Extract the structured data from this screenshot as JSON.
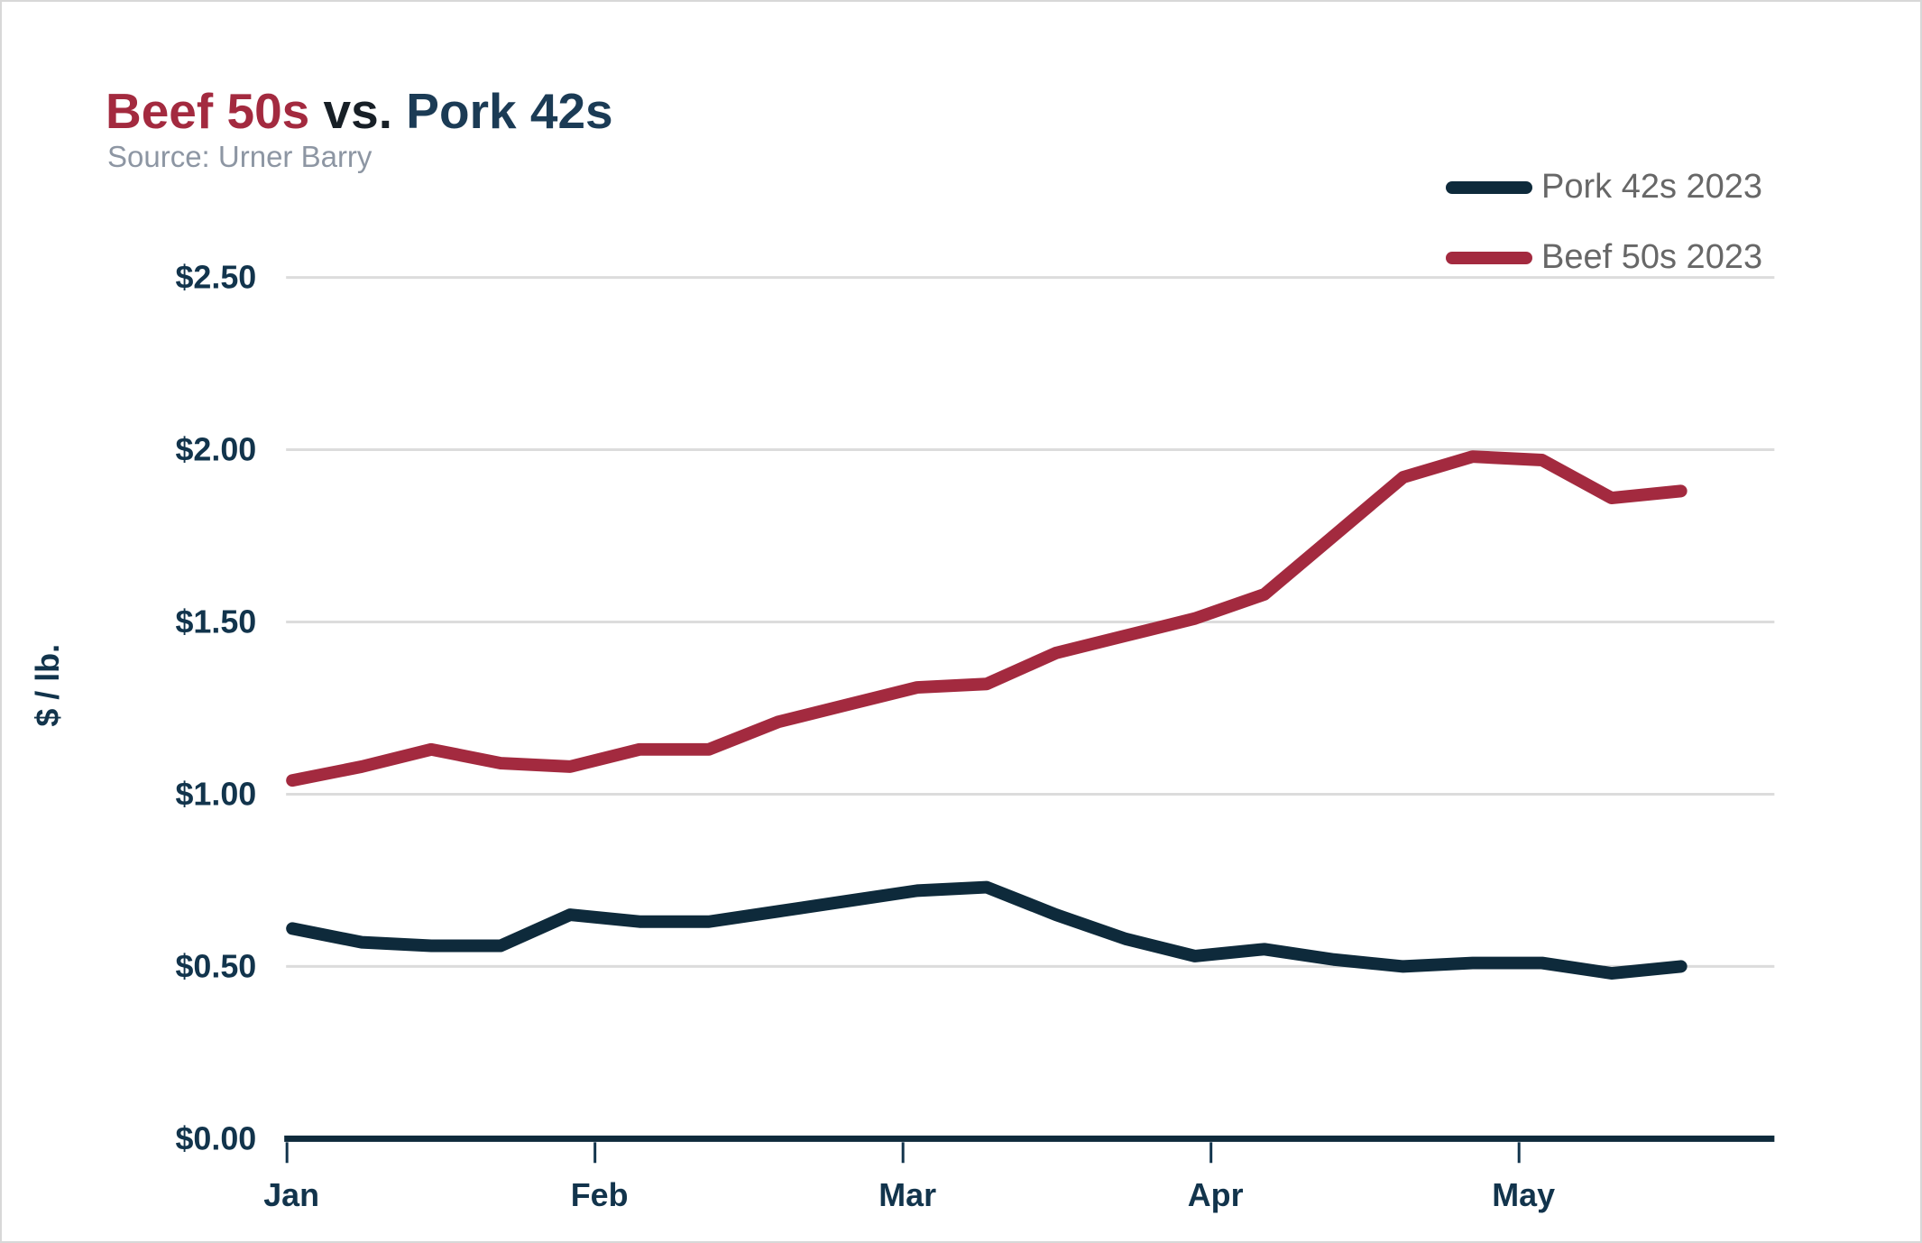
{
  "title": {
    "beef": "Beef 50s",
    "vs": " vs. ",
    "pork": "Pork 42s"
  },
  "subtitle": "Source: Urner Barry",
  "legend": [
    {
      "label": "Pork 42s 2023",
      "color": "#0e2a3b"
    },
    {
      "label": "Beef 50s 2023",
      "color": "#a32a3f"
    }
  ],
  "colors": {
    "beef": "#a32a3f",
    "pork": "#0e2a3b",
    "grid": "#dcdcdc",
    "axis_text": "#12344c",
    "legend_text": "#676767",
    "subtitle_text": "#8d96a3",
    "title_vs": "#171f26",
    "title_pork": "#1b3b55",
    "canvas_border": "#d8d8d8"
  },
  "chart_data": {
    "type": "line",
    "title": "Beef 50s vs. Pork 42s",
    "xlabel": "",
    "ylabel": "$ / lb.",
    "x_tick_labels": [
      "Jan",
      "Feb",
      "Mar",
      "Apr",
      "May"
    ],
    "y_tick_labels": [
      "$0.00",
      "$0.50",
      "$1.00",
      "$1.50",
      "$2.00",
      "$2.50"
    ],
    "y_tick_values": [
      0,
      0.5,
      1.0,
      1.5,
      2.0,
      2.5
    ],
    "ylim": [
      0,
      2.5
    ],
    "grid": "horizontal",
    "legend_position": "top-right",
    "x_frequency": "weekly",
    "series": [
      {
        "name": "Pork 42s 2023",
        "color": "#0e2a3b",
        "values": [
          0.61,
          0.57,
          0.56,
          0.56,
          0.65,
          0.63,
          0.63,
          0.66,
          0.69,
          0.72,
          0.73,
          0.65,
          0.58,
          0.53,
          0.55,
          0.52,
          0.5,
          0.51,
          0.51,
          0.48,
          0.5
        ]
      },
      {
        "name": "Beef 50s 2023",
        "color": "#a32a3f",
        "values": [
          1.04,
          1.08,
          1.13,
          1.09,
          1.08,
          1.13,
          1.13,
          1.21,
          1.26,
          1.31,
          1.32,
          1.41,
          1.46,
          1.51,
          1.58,
          1.75,
          1.92,
          1.98,
          1.97,
          1.86,
          1.88
        ]
      }
    ]
  }
}
